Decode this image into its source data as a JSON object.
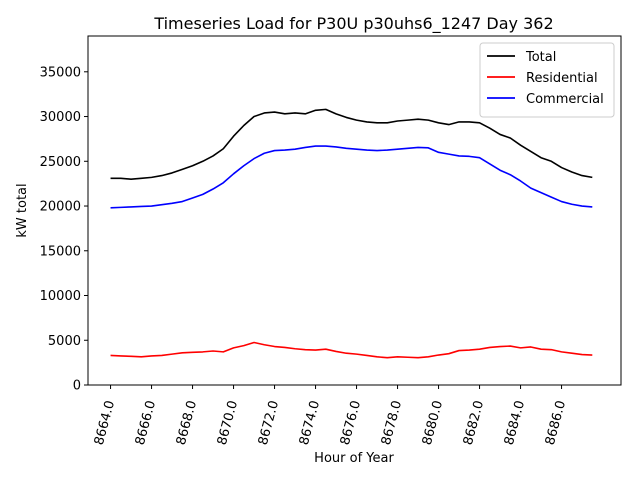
{
  "chart_data": {
    "type": "line",
    "title": "Timeseries Load for P30U p30uhs6_1247  Day 362",
    "xlabel": "Hour of Year",
    "ylabel": "kW total",
    "xlim": [
      8662.9,
      8688.9
    ],
    "ylim": [
      0,
      39000
    ],
    "xticks": [
      8664,
      8666,
      8668,
      8670,
      8672,
      8674,
      8676,
      8678,
      8680,
      8682,
      8684,
      8686
    ],
    "xtick_labels": [
      "8664.0",
      "8666.0",
      "8668.0",
      "8670.0",
      "8672.0",
      "8674.0",
      "8676.0",
      "8678.0",
      "8680.0",
      "8682.0",
      "8684.0",
      "8686.0"
    ],
    "yticks": [
      0,
      5000,
      10000,
      15000,
      20000,
      25000,
      30000,
      35000
    ],
    "ytick_labels": [
      "0",
      "5000",
      "10000",
      "15000",
      "20000",
      "25000",
      "30000",
      "35000"
    ],
    "legend_position": "top-right",
    "series": [
      {
        "name": "Total",
        "color": "#000000",
        "x": [
          8664.0,
          8664.5,
          8665.0,
          8665.5,
          8666.0,
          8666.5,
          8667.0,
          8667.5,
          8668.0,
          8668.5,
          8669.0,
          8669.5,
          8670.0,
          8670.5,
          8671.0,
          8671.5,
          8672.0,
          8672.5,
          8673.0,
          8673.5,
          8674.0,
          8674.5,
          8675.0,
          8675.5,
          8676.0,
          8676.5,
          8677.0,
          8677.5,
          8678.0,
          8678.5,
          8679.0,
          8679.5,
          8680.0,
          8680.5,
          8681.0,
          8681.5,
          8682.0,
          8682.5,
          8683.0,
          8683.5,
          8684.0,
          8684.5,
          8685.0,
          8685.5,
          8686.0,
          8686.5,
          8687.0,
          8687.5
        ],
        "values": [
          23100,
          23100,
          23000,
          23100,
          23200,
          23400,
          23700,
          24100,
          24500,
          25000,
          25600,
          26400,
          27800,
          29000,
          30000,
          30400,
          30500,
          30300,
          30400,
          30300,
          30700,
          30800,
          30300,
          29900,
          29600,
          29400,
          29300,
          29300,
          29500,
          29600,
          29700,
          29600,
          29300,
          29100,
          29400,
          29400,
          29300,
          28700,
          28000,
          27600,
          26800,
          26100,
          25400,
          25000,
          24300,
          23800,
          23400,
          23200
        ]
      },
      {
        "name": "Residential",
        "color": "#ff0000",
        "x": [
          8664.0,
          8664.5,
          8665.0,
          8665.5,
          8666.0,
          8666.5,
          8667.0,
          8667.5,
          8668.0,
          8668.5,
          8669.0,
          8669.5,
          8670.0,
          8670.5,
          8671.0,
          8671.5,
          8672.0,
          8672.5,
          8673.0,
          8673.5,
          8674.0,
          8674.5,
          8675.0,
          8675.5,
          8676.0,
          8676.5,
          8677.0,
          8677.5,
          8678.0,
          8678.5,
          8679.0,
          8679.5,
          8680.0,
          8680.5,
          8681.0,
          8681.5,
          8682.0,
          8682.5,
          8683.0,
          8683.5,
          8684.0,
          8684.5,
          8685.0,
          8685.5,
          8686.0,
          8686.5,
          8687.0,
          8687.5
        ],
        "values": [
          3300,
          3250,
          3200,
          3150,
          3250,
          3300,
          3450,
          3600,
          3650,
          3700,
          3800,
          3700,
          4150,
          4400,
          4750,
          4500,
          4300,
          4200,
          4050,
          3950,
          3900,
          4000,
          3750,
          3550,
          3450,
          3300,
          3150,
          3050,
          3150,
          3100,
          3050,
          3150,
          3350,
          3500,
          3850,
          3900,
          4000,
          4200,
          4300,
          4350,
          4150,
          4250,
          4000,
          3950,
          3700,
          3550,
          3400,
          3350
        ]
      },
      {
        "name": "Commercial",
        "color": "#0000ff",
        "x": [
          8664.0,
          8664.5,
          8665.0,
          8665.5,
          8666.0,
          8666.5,
          8667.0,
          8667.5,
          8668.0,
          8668.5,
          8669.0,
          8669.5,
          8670.0,
          8670.5,
          8671.0,
          8671.5,
          8672.0,
          8672.5,
          8673.0,
          8673.5,
          8674.0,
          8674.5,
          8675.0,
          8675.5,
          8676.0,
          8676.5,
          8677.0,
          8677.5,
          8678.0,
          8678.5,
          8679.0,
          8679.5,
          8680.0,
          8680.5,
          8681.0,
          8681.5,
          8682.0,
          8682.5,
          8683.0,
          8683.5,
          8684.0,
          8684.5,
          8685.0,
          8685.5,
          8686.0,
          8686.5,
          8687.0,
          8687.5
        ],
        "values": [
          19800,
          19850,
          19900,
          19950,
          20000,
          20150,
          20300,
          20500,
          20900,
          21300,
          21900,
          22600,
          23600,
          24500,
          25300,
          25900,
          26200,
          26250,
          26350,
          26550,
          26700,
          26700,
          26600,
          26450,
          26350,
          26250,
          26200,
          26250,
          26350,
          26450,
          26550,
          26500,
          26000,
          25800,
          25600,
          25550,
          25400,
          24700,
          24000,
          23500,
          22800,
          22000,
          21500,
          21000,
          20500,
          20200,
          20000,
          19900
        ]
      }
    ]
  }
}
